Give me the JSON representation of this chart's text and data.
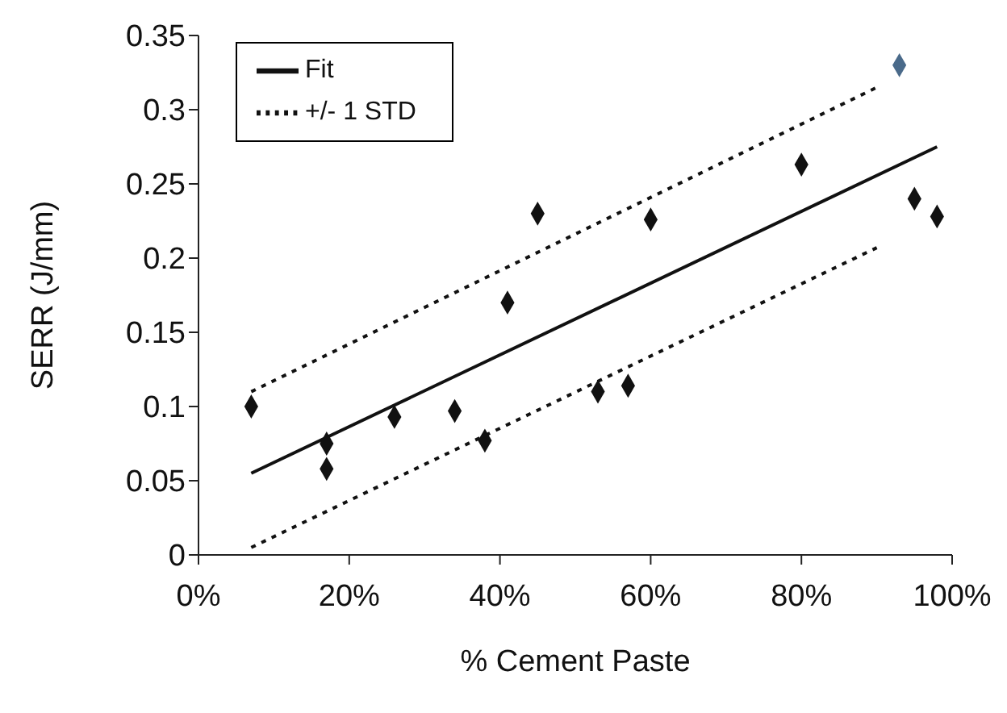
{
  "chart_data": {
    "type": "scatter",
    "xlabel": "% Cement Paste",
    "ylabel": "SERR (J/mm)",
    "xlim": [
      0,
      100
    ],
    "xticks": [
      {
        "value": 0,
        "label": "0%"
      },
      {
        "value": 20,
        "label": "20%"
      },
      {
        "value": 40,
        "label": "40%"
      },
      {
        "value": 60,
        "label": "60%"
      },
      {
        "value": 80,
        "label": "80%"
      },
      {
        "value": 100,
        "label": "100%"
      }
    ],
    "ylim": [
      0,
      0.35
    ],
    "yticks": [
      0,
      0.05,
      0.1,
      0.15,
      0.2,
      0.25,
      0.3,
      0.35
    ],
    "grid": false,
    "legend": "top left",
    "series": [
      {
        "marker": "diamond",
        "x": [
          7,
          17,
          17,
          26,
          34,
          38,
          41,
          45,
          53,
          57,
          60,
          80,
          93,
          95,
          98
        ],
        "values": [
          0.1,
          0.075,
          0.058,
          0.093,
          0.097,
          0.077,
          0.17,
          0.23,
          0.11,
          0.114,
          0.226,
          0.263,
          0.33,
          0.24,
          0.228
        ],
        "colors": [
          "#111111",
          "#111111",
          "#111111",
          "#111111",
          "#111111",
          "#111111",
          "#111111",
          "#111111",
          "#111111",
          "#111111",
          "#111111",
          "#111111",
          "#4a6a8a",
          "#111111",
          "#111111"
        ]
      },
      {
        "type": "line",
        "name": "Fit",
        "color": "#111111",
        "line_style": "solid",
        "x": [
          7,
          98
        ],
        "values": [
          0.055,
          0.275
        ]
      },
      {
        "type": "line",
        "name": "+/- 1 STD",
        "color": "#111111",
        "line_style": "dotted",
        "x": [
          7,
          90
        ],
        "values": [
          0.11,
          0.315
        ]
      },
      {
        "type": "line",
        "color": "#111111",
        "line_style": "dotted",
        "x": [
          7,
          90
        ],
        "values": [
          0.005,
          0.207
        ]
      }
    ]
  }
}
